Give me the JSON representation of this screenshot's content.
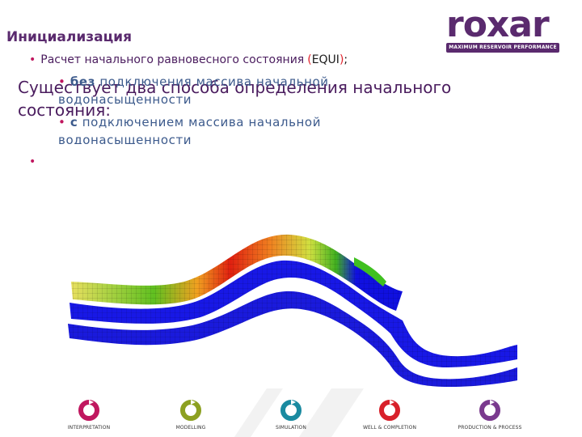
{
  "slide": {
    "title": "Инициализация"
  },
  "logo": {
    "word": "roxar",
    "tagline": "MAXIMUM RESERVOIR PERFORMANCE",
    "color": "#5a2a6e"
  },
  "content": {
    "heading": "Существует два способа определения начального состояния:",
    "bullet1": {
      "text": "Расчет начального равновесного состояния",
      "paren_open": "(",
      "keyword": "EQUI",
      "paren_close": ")",
      "suffix": ";"
    },
    "sub1": {
      "marker": "•",
      "key": "без",
      "text": "подключения массива начальной водонасыщенности"
    },
    "sub2": {
      "marker": "•",
      "key": "с",
      "text": "подключением массива начальной водонасыщенности"
    },
    "bullet2_marker": "•"
  },
  "footer": {
    "stages": [
      {
        "label": "INTERPRETATION",
        "color": "#c0175f"
      },
      {
        "label": "MODELLING",
        "color": "#8ca020"
      },
      {
        "label": "SIMULATION",
        "color": "#1a8aa0"
      },
      {
        "label": "WELL & COMPLETION",
        "color": "#d8202a"
      },
      {
        "label": "PRODUCTION & PROCESS",
        "color": "#7a3a8e"
      }
    ]
  }
}
